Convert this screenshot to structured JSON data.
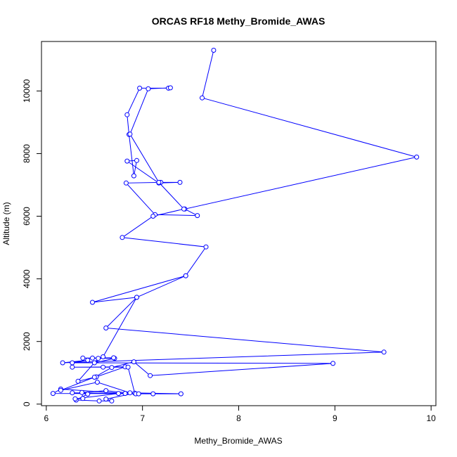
{
  "chart_data": {
    "type": "line",
    "title": "ORCAS RF18 Methy_Bromide_AWAS",
    "xlabel": "Methy_Bromide_AWAS",
    "ylabel": "Altitude (m)",
    "xlim": [
      5.95,
      10.05
    ],
    "ylim": [
      -50,
      11580
    ],
    "x_ticks": [
      6,
      7,
      8,
      9,
      10
    ],
    "x_tick_labels": [
      "6",
      "7",
      "8",
      "9",
      "10"
    ],
    "y_ticks": [
      0,
      2000,
      4000,
      6000,
      8000,
      10000
    ],
    "y_tick_labels": [
      "0",
      "2000",
      "4000",
      "6000",
      "8000",
      "10000"
    ],
    "grid": false,
    "legend": "none",
    "series": [
      {
        "color": "#0000ff",
        "marker": "open-circle",
        "points": [
          [
            7.74,
            11300
          ],
          [
            7.62,
            9780
          ],
          [
            9.85,
            7890
          ],
          [
            7.44,
            6230
          ],
          [
            7.57,
            6020
          ],
          [
            7.13,
            6050
          ],
          [
            6.83,
            7060
          ],
          [
            7.19,
            7080
          ],
          [
            7.39,
            7080
          ],
          [
            7.17,
            7060
          ],
          [
            6.84,
            7760
          ],
          [
            6.94,
            7780
          ],
          [
            6.91,
            7290
          ],
          [
            6.86,
            8610
          ],
          [
            6.84,
            9240
          ],
          [
            6.97,
            10090
          ],
          [
            7.27,
            10090
          ],
          [
            7.29,
            10100
          ],
          [
            7.06,
            10070
          ],
          [
            6.87,
            8620
          ],
          [
            7.17,
            7080
          ],
          [
            7.43,
            6230
          ],
          [
            7.11,
            6000
          ],
          [
            6.79,
            5320
          ],
          [
            7.66,
            5020
          ],
          [
            7.45,
            4100
          ],
          [
            6.48,
            3250
          ],
          [
            6.94,
            3410
          ],
          [
            6.59,
            1510
          ],
          [
            6.5,
            1320
          ],
          [
            6.71,
            1460
          ],
          [
            6.38,
            1470
          ],
          [
            6.48,
            1470
          ],
          [
            6.7,
            1480
          ],
          [
            6.54,
            1460
          ],
          [
            6.33,
            730
          ],
          [
            6.52,
            870
          ],
          [
            6.82,
            1190
          ],
          [
            6.27,
            1180
          ],
          [
            6.59,
            1180
          ],
          [
            6.85,
            1180
          ],
          [
            6.92,
            350
          ],
          [
            6.62,
            160
          ],
          [
            6.68,
            100
          ],
          [
            6.55,
            100
          ],
          [
            6.31,
            130
          ],
          [
            6.43,
            320
          ],
          [
            6.27,
            360
          ],
          [
            6.75,
            340
          ],
          [
            6.3,
            170
          ],
          [
            6.38,
            180
          ],
          [
            6.37,
            370
          ],
          [
            6.62,
            430
          ],
          [
            6.93,
            330
          ],
          [
            6.96,
            330
          ],
          [
            7.11,
            330
          ],
          [
            6.82,
            340
          ],
          [
            6.15,
            480
          ],
          [
            6.07,
            340
          ],
          [
            7.4,
            330
          ],
          [
            6.87,
            360
          ],
          [
            6.53,
            700
          ],
          [
            6.15,
            440
          ],
          [
            6.5,
            860
          ],
          [
            6.68,
            1170
          ],
          [
            6.91,
            1350
          ],
          [
            7.08,
            910
          ],
          [
            8.98,
            1300
          ],
          [
            6.27,
            1320
          ],
          [
            6.43,
            1400
          ],
          [
            6.17,
            1320
          ],
          [
            9.51,
            1660
          ],
          [
            6.62,
            2430
          ],
          [
            6.94,
            3410
          ],
          [
            7.45,
            4100
          ]
        ]
      }
    ]
  }
}
